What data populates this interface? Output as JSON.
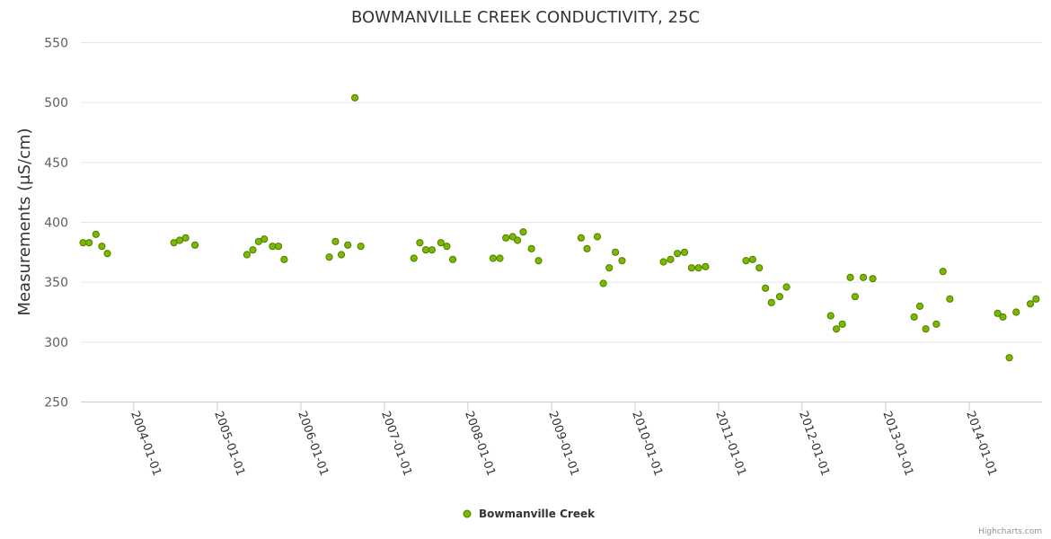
{
  "credit": "Highcharts.com",
  "chart_data": {
    "type": "scatter",
    "title": "BOWMANVILLE CREEK CONDUCTIVITY, 25C",
    "ylabel": "Measurements (μS/cm)",
    "xlabel": "",
    "ylim": [
      250,
      550
    ],
    "yticks": [
      "250",
      "300",
      "350",
      "400",
      "450",
      "500",
      "550"
    ],
    "xlim": [
      "2003-05-15",
      "2014-11-15"
    ],
    "xticks": [
      "2004-01-01",
      "2005-01-01",
      "2006-01-01",
      "2007-01-01",
      "2008-01-01",
      "2009-01-01",
      "2010-01-01",
      "2011-01-01",
      "2012-01-01",
      "2013-01-01",
      "2014-01-01"
    ],
    "grid": true,
    "legend_position": "bottom-center",
    "marker_color": "#7cb800",
    "marker_border": "#4a7f00",
    "series": [
      {
        "name": "Bowmanville Creek",
        "points": [
          {
            "x": "2003-05-25",
            "y": 383
          },
          {
            "x": "2003-06-20",
            "y": 383
          },
          {
            "x": "2003-07-20",
            "y": 390
          },
          {
            "x": "2003-08-15",
            "y": 380
          },
          {
            "x": "2003-09-08",
            "y": 374
          },
          {
            "x": "2004-06-25",
            "y": 383
          },
          {
            "x": "2004-07-20",
            "y": 385
          },
          {
            "x": "2004-08-15",
            "y": 387
          },
          {
            "x": "2004-09-25",
            "y": 381
          },
          {
            "x": "2005-05-10",
            "y": 373
          },
          {
            "x": "2005-06-05",
            "y": 377
          },
          {
            "x": "2005-06-30",
            "y": 384
          },
          {
            "x": "2005-07-25",
            "y": 386
          },
          {
            "x": "2005-08-30",
            "y": 380
          },
          {
            "x": "2005-09-25",
            "y": 380
          },
          {
            "x": "2005-10-20",
            "y": 369
          },
          {
            "x": "2006-05-05",
            "y": 371
          },
          {
            "x": "2006-06-01",
            "y": 384
          },
          {
            "x": "2006-06-27",
            "y": 373
          },
          {
            "x": "2006-07-25",
            "y": 381
          },
          {
            "x": "2006-08-25",
            "y": 504
          },
          {
            "x": "2006-09-20",
            "y": 380
          },
          {
            "x": "2007-05-10",
            "y": 370
          },
          {
            "x": "2007-06-05",
            "y": 383
          },
          {
            "x": "2007-07-01",
            "y": 377
          },
          {
            "x": "2007-07-28",
            "y": 377
          },
          {
            "x": "2007-09-05",
            "y": 383
          },
          {
            "x": "2007-10-01",
            "y": 380
          },
          {
            "x": "2007-10-27",
            "y": 369
          },
          {
            "x": "2008-04-20",
            "y": 370
          },
          {
            "x": "2008-05-20",
            "y": 370
          },
          {
            "x": "2008-06-15",
            "y": 387
          },
          {
            "x": "2008-07-15",
            "y": 388
          },
          {
            "x": "2008-08-05",
            "y": 385
          },
          {
            "x": "2008-08-30",
            "y": 392
          },
          {
            "x": "2008-10-05",
            "y": 378
          },
          {
            "x": "2008-11-05",
            "y": 368
          },
          {
            "x": "2009-05-10",
            "y": 387
          },
          {
            "x": "2009-06-05",
            "y": 378
          },
          {
            "x": "2009-07-20",
            "y": 388
          },
          {
            "x": "2009-08-15",
            "y": 349
          },
          {
            "x": "2009-09-10",
            "y": 362
          },
          {
            "x": "2009-10-07",
            "y": 375
          },
          {
            "x": "2009-11-05",
            "y": 368
          },
          {
            "x": "2010-05-05",
            "y": 367
          },
          {
            "x": "2010-06-05",
            "y": 369
          },
          {
            "x": "2010-07-05",
            "y": 374
          },
          {
            "x": "2010-08-05",
            "y": 375
          },
          {
            "x": "2010-09-05",
            "y": 362
          },
          {
            "x": "2010-10-05",
            "y": 362
          },
          {
            "x": "2010-11-05",
            "y": 363
          },
          {
            "x": "2011-05-01",
            "y": 368
          },
          {
            "x": "2011-05-30",
            "y": 369
          },
          {
            "x": "2011-06-28",
            "y": 362
          },
          {
            "x": "2011-07-25",
            "y": 345
          },
          {
            "x": "2011-08-20",
            "y": 333
          },
          {
            "x": "2011-09-25",
            "y": 338
          },
          {
            "x": "2011-10-25",
            "y": 346
          },
          {
            "x": "2012-05-05",
            "y": 322
          },
          {
            "x": "2012-05-30",
            "y": 311
          },
          {
            "x": "2012-06-25",
            "y": 315
          },
          {
            "x": "2012-07-30",
            "y": 354
          },
          {
            "x": "2012-08-20",
            "y": 338
          },
          {
            "x": "2012-09-25",
            "y": 354
          },
          {
            "x": "2012-11-05",
            "y": 353
          },
          {
            "x": "2013-05-05",
            "y": 321
          },
          {
            "x": "2013-05-30",
            "y": 330
          },
          {
            "x": "2013-06-25",
            "y": 311
          },
          {
            "x": "2013-08-10",
            "y": 315
          },
          {
            "x": "2013-09-08",
            "y": 359
          },
          {
            "x": "2013-10-08",
            "y": 336
          },
          {
            "x": "2014-05-05",
            "y": 324
          },
          {
            "x": "2014-05-28",
            "y": 321
          },
          {
            "x": "2014-06-25",
            "y": 287
          },
          {
            "x": "2014-07-25",
            "y": 325
          },
          {
            "x": "2014-09-25",
            "y": 332
          },
          {
            "x": "2014-10-20",
            "y": 336
          }
        ]
      }
    ]
  }
}
